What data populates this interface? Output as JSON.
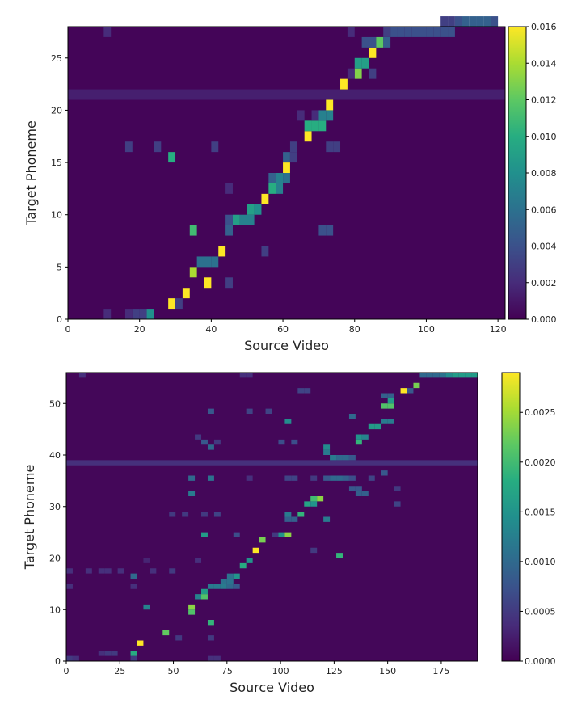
{
  "chart_data": [
    {
      "type": "heatmap",
      "xlabel": "Source Video",
      "ylabel": "Target Phoneme",
      "xlim": [
        0,
        122
      ],
      "ylim": [
        0,
        28
      ],
      "x_ticks": [
        "0",
        "20",
        "40",
        "60",
        "80",
        "100",
        "120"
      ],
      "y_ticks": [
        "0",
        "5",
        "10",
        "15",
        "20",
        "25"
      ],
      "colorbar": {
        "min": 0,
        "max": 0.016,
        "ticks": [
          "0.000",
          "0.002",
          "0.004",
          "0.006",
          "0.008",
          "0.010",
          "0.012",
          "0.014",
          "0.016"
        ]
      },
      "colormap": "viridis",
      "background_value": 0.0002,
      "row_band_value": 0.0014,
      "row_band": 21,
      "cells": [
        {
          "x": 10,
          "y": 0,
          "v": 0.002
        },
        {
          "x": 16,
          "y": 0,
          "v": 0.002
        },
        {
          "x": 18,
          "y": 0,
          "v": 0.003
        },
        {
          "x": 20,
          "y": 0,
          "v": 0.003
        },
        {
          "x": 22,
          "y": 0,
          "v": 0.008
        },
        {
          "x": 28,
          "y": 1,
          "v": 0.016
        },
        {
          "x": 30,
          "y": 1,
          "v": 0.003
        },
        {
          "x": 32,
          "y": 2,
          "v": 0.016
        },
        {
          "x": 38,
          "y": 3,
          "v": 0.016
        },
        {
          "x": 44,
          "y": 3,
          "v": 0.003
        },
        {
          "x": 34,
          "y": 4,
          "v": 0.014
        },
        {
          "x": 36,
          "y": 5,
          "v": 0.006
        },
        {
          "x": 38,
          "y": 5,
          "v": 0.006
        },
        {
          "x": 40,
          "y": 5,
          "v": 0.006
        },
        {
          "x": 42,
          "y": 6,
          "v": 0.016
        },
        {
          "x": 54,
          "y": 6,
          "v": 0.003
        },
        {
          "x": 34,
          "y": 8,
          "v": 0.011
        },
        {
          "x": 44,
          "y": 8,
          "v": 0.005
        },
        {
          "x": 70,
          "y": 8,
          "v": 0.004
        },
        {
          "x": 72,
          "y": 8,
          "v": 0.004
        },
        {
          "x": 44,
          "y": 9,
          "v": 0.004
        },
        {
          "x": 46,
          "y": 9,
          "v": 0.009
        },
        {
          "x": 48,
          "y": 9,
          "v": 0.007
        },
        {
          "x": 50,
          "y": 9,
          "v": 0.007
        },
        {
          "x": 50,
          "y": 10,
          "v": 0.009
        },
        {
          "x": 52,
          "y": 10,
          "v": 0.008
        },
        {
          "x": 54,
          "y": 11,
          "v": 0.016
        },
        {
          "x": 56,
          "y": 12,
          "v": 0.01
        },
        {
          "x": 58,
          "y": 12,
          "v": 0.007
        },
        {
          "x": 44,
          "y": 12,
          "v": 0.002
        },
        {
          "x": 56,
          "y": 13,
          "v": 0.005
        },
        {
          "x": 58,
          "y": 13,
          "v": 0.007
        },
        {
          "x": 60,
          "y": 13,
          "v": 0.006
        },
        {
          "x": 60,
          "y": 14,
          "v": 0.016
        },
        {
          "x": 28,
          "y": 15,
          "v": 0.01
        },
        {
          "x": 60,
          "y": 15,
          "v": 0.005
        },
        {
          "x": 62,
          "y": 15,
          "v": 0.003
        },
        {
          "x": 16,
          "y": 16,
          "v": 0.003
        },
        {
          "x": 24,
          "y": 16,
          "v": 0.003
        },
        {
          "x": 40,
          "y": 16,
          "v": 0.003
        },
        {
          "x": 62,
          "y": 16,
          "v": 0.003
        },
        {
          "x": 72,
          "y": 16,
          "v": 0.003
        },
        {
          "x": 74,
          "y": 16,
          "v": 0.003
        },
        {
          "x": 66,
          "y": 17,
          "v": 0.016
        },
        {
          "x": 66,
          "y": 18,
          "v": 0.01
        },
        {
          "x": 68,
          "y": 18,
          "v": 0.01
        },
        {
          "x": 70,
          "y": 18,
          "v": 0.01
        },
        {
          "x": 64,
          "y": 19,
          "v": 0.002
        },
        {
          "x": 68,
          "y": 19,
          "v": 0.002
        },
        {
          "x": 70,
          "y": 19,
          "v": 0.007
        },
        {
          "x": 72,
          "y": 19,
          "v": 0.007
        },
        {
          "x": 72,
          "y": 20,
          "v": 0.016
        },
        {
          "x": 76,
          "y": 22,
          "v": 0.016
        },
        {
          "x": 80,
          "y": 23,
          "v": 0.013
        },
        {
          "x": 84,
          "y": 23,
          "v": 0.003
        },
        {
          "x": 78,
          "y": 23,
          "v": 0.002
        },
        {
          "x": 80,
          "y": 24,
          "v": 0.009
        },
        {
          "x": 82,
          "y": 24,
          "v": 0.009
        },
        {
          "x": 84,
          "y": 25,
          "v": 0.016
        },
        {
          "x": 82,
          "y": 26,
          "v": 0.004
        },
        {
          "x": 84,
          "y": 26,
          "v": 0.004
        },
        {
          "x": 86,
          "y": 26,
          "v": 0.012
        },
        {
          "x": 88,
          "y": 26,
          "v": 0.005
        },
        {
          "x": 10,
          "y": 27,
          "v": 0.002
        },
        {
          "x": 78,
          "y": 27,
          "v": 0.002
        },
        {
          "x": 88,
          "y": 27,
          "v": 0.003
        },
        {
          "x": 90,
          "y": 27,
          "v": 0.004
        },
        {
          "x": 92,
          "y": 27,
          "v": 0.004
        },
        {
          "x": 94,
          "y": 27,
          "v": 0.004
        },
        {
          "x": 96,
          "y": 27,
          "v": 0.004
        },
        {
          "x": 98,
          "y": 27,
          "v": 0.004
        },
        {
          "x": 100,
          "y": 27,
          "v": 0.004
        },
        {
          "x": 102,
          "y": 27,
          "v": 0.004
        },
        {
          "x": 104,
          "y": 27,
          "v": 0.004
        },
        {
          "x": 106,
          "y": 27,
          "v": 0.004
        },
        {
          "x": 104,
          "y": 28,
          "v": 0.003
        },
        {
          "x": 106,
          "y": 28,
          "v": 0.003
        },
        {
          "x": 108,
          "y": 28,
          "v": 0.004
        },
        {
          "x": 110,
          "y": 28,
          "v": 0.005
        },
        {
          "x": 112,
          "y": 28,
          "v": 0.005
        },
        {
          "x": 114,
          "y": 28,
          "v": 0.005
        },
        {
          "x": 116,
          "y": 28,
          "v": 0.005
        },
        {
          "x": 118,
          "y": 28,
          "v": 0.004
        }
      ]
    },
    {
      "type": "heatmap",
      "xlabel": "Source Video",
      "ylabel": "Target Phoneme",
      "xlim": [
        0,
        192
      ],
      "ylim": [
        0,
        56
      ],
      "x_ticks": [
        "0",
        "25",
        "50",
        "75",
        "100",
        "125",
        "150",
        "175"
      ],
      "y_ticks": [
        "0",
        "10",
        "20",
        "30",
        "40",
        "50"
      ],
      "colorbar": {
        "min": 0,
        "max": 0.0029,
        "ticks": [
          "0.0000",
          "0.0005",
          "0.0010",
          "0.0015",
          "0.0020",
          "0.0025"
        ]
      },
      "colormap": "viridis",
      "background_value": 5e-05,
      "row_band_value": 0.0004,
      "row_band": 38,
      "cells": [
        {
          "x": 0,
          "y": 0,
          "v": 0.0005
        },
        {
          "x": 3,
          "y": 0,
          "v": 0.0004
        },
        {
          "x": 30,
          "y": 0,
          "v": 0.0005
        },
        {
          "x": 66,
          "y": 0,
          "v": 0.0004
        },
        {
          "x": 69,
          "y": 0,
          "v": 0.0004
        },
        {
          "x": 15,
          "y": 1,
          "v": 0.0004
        },
        {
          "x": 18,
          "y": 1,
          "v": 0.0005
        },
        {
          "x": 21,
          "y": 1,
          "v": 0.0005
        },
        {
          "x": 30,
          "y": 1,
          "v": 0.0018
        },
        {
          "x": 33,
          "y": 3,
          "v": 0.0029
        },
        {
          "x": 51,
          "y": 4,
          "v": 0.0005
        },
        {
          "x": 66,
          "y": 4,
          "v": 0.0005
        },
        {
          "x": 45,
          "y": 5,
          "v": 0.0022
        },
        {
          "x": 66,
          "y": 7,
          "v": 0.0019
        },
        {
          "x": 57,
          "y": 9,
          "v": 0.0021
        },
        {
          "x": 57,
          "y": 10,
          "v": 0.0024
        },
        {
          "x": 36,
          "y": 10,
          "v": 0.0013
        },
        {
          "x": 60,
          "y": 12,
          "v": 0.0013
        },
        {
          "x": 63,
          "y": 12,
          "v": 0.0021
        },
        {
          "x": 63,
          "y": 13,
          "v": 0.0016
        },
        {
          "x": 66,
          "y": 14,
          "v": 0.0012
        },
        {
          "x": 69,
          "y": 14,
          "v": 0.0012
        },
        {
          "x": 72,
          "y": 14,
          "v": 0.0012
        },
        {
          "x": 75,
          "y": 14,
          "v": 0.001
        },
        {
          "x": 78,
          "y": 14,
          "v": 0.0008
        },
        {
          "x": 0,
          "y": 14,
          "v": 0.0004
        },
        {
          "x": 30,
          "y": 14,
          "v": 0.0004
        },
        {
          "x": 72,
          "y": 15,
          "v": 0.0011
        },
        {
          "x": 75,
          "y": 15,
          "v": 0.0011
        },
        {
          "x": 30,
          "y": 16,
          "v": 0.001
        },
        {
          "x": 75,
          "y": 16,
          "v": 0.0011
        },
        {
          "x": 78,
          "y": 16,
          "v": 0.0015
        },
        {
          "x": 0,
          "y": 17,
          "v": 0.0004
        },
        {
          "x": 9,
          "y": 17,
          "v": 0.0004
        },
        {
          "x": 15,
          "y": 17,
          "v": 0.0004
        },
        {
          "x": 18,
          "y": 17,
          "v": 0.0004
        },
        {
          "x": 24,
          "y": 17,
          "v": 0.0004
        },
        {
          "x": 39,
          "y": 17,
          "v": 0.0004
        },
        {
          "x": 48,
          "y": 17,
          "v": 0.0005
        },
        {
          "x": 81,
          "y": 18,
          "v": 0.0018
        },
        {
          "x": 84,
          "y": 19,
          "v": 0.0015
        },
        {
          "x": 60,
          "y": 19,
          "v": 0.0004
        },
        {
          "x": 36,
          "y": 19,
          "v": 0.0003
        },
        {
          "x": 126,
          "y": 20,
          "v": 0.0019
        },
        {
          "x": 87,
          "y": 21,
          "v": 0.0029
        },
        {
          "x": 114,
          "y": 21,
          "v": 0.0005
        },
        {
          "x": 90,
          "y": 23,
          "v": 0.0023
        },
        {
          "x": 63,
          "y": 24,
          "v": 0.0016
        },
        {
          "x": 78,
          "y": 24,
          "v": 0.0007
        },
        {
          "x": 96,
          "y": 24,
          "v": 0.0005
        },
        {
          "x": 99,
          "y": 24,
          "v": 0.0015
        },
        {
          "x": 102,
          "y": 24,
          "v": 0.0024
        },
        {
          "x": 102,
          "y": 27,
          "v": 0.0009
        },
        {
          "x": 105,
          "y": 27,
          "v": 0.0009
        },
        {
          "x": 120,
          "y": 27,
          "v": 0.0012
        },
        {
          "x": 48,
          "y": 28,
          "v": 0.0005
        },
        {
          "x": 54,
          "y": 28,
          "v": 0.0005
        },
        {
          "x": 63,
          "y": 28,
          "v": 0.0005
        },
        {
          "x": 69,
          "y": 28,
          "v": 0.0006
        },
        {
          "x": 102,
          "y": 28,
          "v": 0.0012
        },
        {
          "x": 108,
          "y": 28,
          "v": 0.0019
        },
        {
          "x": 111,
          "y": 30,
          "v": 0.0017
        },
        {
          "x": 114,
          "y": 30,
          "v": 0.0015
        },
        {
          "x": 153,
          "y": 30,
          "v": 0.0006
        },
        {
          "x": 114,
          "y": 31,
          "v": 0.002
        },
        {
          "x": 117,
          "y": 31,
          "v": 0.0024
        },
        {
          "x": 57,
          "y": 32,
          "v": 0.0012
        },
        {
          "x": 135,
          "y": 32,
          "v": 0.0009
        },
        {
          "x": 138,
          "y": 32,
          "v": 0.0009
        },
        {
          "x": 132,
          "y": 33,
          "v": 0.0008
        },
        {
          "x": 135,
          "y": 33,
          "v": 0.0008
        },
        {
          "x": 153,
          "y": 33,
          "v": 0.0005
        },
        {
          "x": 57,
          "y": 35,
          "v": 0.001
        },
        {
          "x": 66,
          "y": 35,
          "v": 0.0011
        },
        {
          "x": 84,
          "y": 35,
          "v": 0.0004
        },
        {
          "x": 102,
          "y": 35,
          "v": 0.0006
        },
        {
          "x": 105,
          "y": 35,
          "v": 0.0006
        },
        {
          "x": 114,
          "y": 35,
          "v": 0.0005
        },
        {
          "x": 120,
          "y": 35,
          "v": 0.0008
        },
        {
          "x": 123,
          "y": 35,
          "v": 0.001
        },
        {
          "x": 126,
          "y": 35,
          "v": 0.001
        },
        {
          "x": 129,
          "y": 35,
          "v": 0.0009
        },
        {
          "x": 132,
          "y": 35,
          "v": 0.0007
        },
        {
          "x": 141,
          "y": 35,
          "v": 0.0006
        },
        {
          "x": 147,
          "y": 36,
          "v": 0.0008
        },
        {
          "x": 123,
          "y": 39,
          "v": 0.0012
        },
        {
          "x": 126,
          "y": 39,
          "v": 0.001
        },
        {
          "x": 129,
          "y": 39,
          "v": 0.001
        },
        {
          "x": 132,
          "y": 39,
          "v": 0.0008
        },
        {
          "x": 120,
          "y": 40,
          "v": 0.0012
        },
        {
          "x": 120,
          "y": 41,
          "v": 0.0014
        },
        {
          "x": 66,
          "y": 41,
          "v": 0.001
        },
        {
          "x": 63,
          "y": 42,
          "v": 0.0008
        },
        {
          "x": 69,
          "y": 42,
          "v": 0.0005
        },
        {
          "x": 60,
          "y": 43,
          "v": 0.0005
        },
        {
          "x": 99,
          "y": 42,
          "v": 0.0007
        },
        {
          "x": 105,
          "y": 42,
          "v": 0.0007
        },
        {
          "x": 135,
          "y": 42,
          "v": 0.0019
        },
        {
          "x": 135,
          "y": 43,
          "v": 0.0015
        },
        {
          "x": 138,
          "y": 43,
          "v": 0.0013
        },
        {
          "x": 141,
          "y": 45,
          "v": 0.0016
        },
        {
          "x": 144,
          "y": 45,
          "v": 0.0016
        },
        {
          "x": 147,
          "y": 46,
          "v": 0.0012
        },
        {
          "x": 150,
          "y": 46,
          "v": 0.0012
        },
        {
          "x": 102,
          "y": 46,
          "v": 0.0014
        },
        {
          "x": 132,
          "y": 47,
          "v": 0.001
        },
        {
          "x": 66,
          "y": 48,
          "v": 0.0008
        },
        {
          "x": 84,
          "y": 48,
          "v": 0.0006
        },
        {
          "x": 93,
          "y": 48,
          "v": 0.0006
        },
        {
          "x": 147,
          "y": 49,
          "v": 0.0021
        },
        {
          "x": 150,
          "y": 49,
          "v": 0.0021
        },
        {
          "x": 150,
          "y": 50,
          "v": 0.0016
        },
        {
          "x": 147,
          "y": 51,
          "v": 0.0009
        },
        {
          "x": 150,
          "y": 51,
          "v": 0.0009
        },
        {
          "x": 108,
          "y": 52,
          "v": 0.0006
        },
        {
          "x": 111,
          "y": 52,
          "v": 0.0006
        },
        {
          "x": 156,
          "y": 52,
          "v": 0.0029
        },
        {
          "x": 159,
          "y": 52,
          "v": 0.0008
        },
        {
          "x": 162,
          "y": 53,
          "v": 0.0023
        },
        {
          "x": 6,
          "y": 55,
          "v": 0.0004
        },
        {
          "x": 81,
          "y": 55,
          "v": 0.0004
        },
        {
          "x": 84,
          "y": 55,
          "v": 0.0004
        },
        {
          "x": 165,
          "y": 55,
          "v": 0.001
        },
        {
          "x": 168,
          "y": 55,
          "v": 0.001
        },
        {
          "x": 171,
          "y": 55,
          "v": 0.001
        },
        {
          "x": 174,
          "y": 55,
          "v": 0.0011
        },
        {
          "x": 177,
          "y": 55,
          "v": 0.0014
        },
        {
          "x": 180,
          "y": 55,
          "v": 0.0016
        },
        {
          "x": 183,
          "y": 55,
          "v": 0.0016
        },
        {
          "x": 186,
          "y": 55,
          "v": 0.0016
        },
        {
          "x": 189,
          "y": 55,
          "v": 0.0016
        }
      ]
    }
  ]
}
